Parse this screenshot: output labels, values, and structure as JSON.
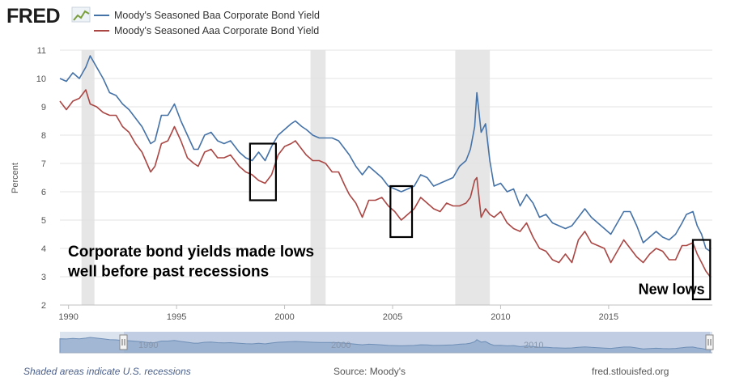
{
  "brand": {
    "logo_text": "FRED",
    "logo_icon": "line-chart-icon"
  },
  "footer": {
    "recession_note": "Shaded areas indicate U.S. recessions",
    "source": "Source: Moody's",
    "site": "fred.stlouisfed.org"
  },
  "navigator": {
    "labels": [
      "1990",
      "2000",
      "2010"
    ]
  },
  "chart_data": {
    "type": "line",
    "title": "",
    "xlabel": "",
    "ylabel": "Percent",
    "ylim": [
      2,
      11
    ],
    "xlim": [
      1989.6,
      2019.8
    ],
    "yticks": [
      2,
      3,
      4,
      5,
      6,
      7,
      8,
      9,
      10,
      11
    ],
    "xticks": [
      "1990",
      "1995",
      "2000",
      "2005",
      "2010",
      "2015"
    ],
    "xtick_values": [
      1990,
      1995,
      2000,
      2005,
      2010,
      2015
    ],
    "grid": true,
    "colors": {
      "baa": "#4572a7",
      "aaa": "#aa4643",
      "recession": "#e6e6e6",
      "grid": "#e3e3e3"
    },
    "recessions": [
      [
        1990.6,
        1991.2
      ],
      [
        2001.2,
        2001.9
      ],
      [
        2007.9,
        2009.5
      ]
    ],
    "series": [
      {
        "name": "Moody's Seasoned Baa Corporate Bond Yield",
        "x": [
          1989.6,
          1989.9,
          1990.2,
          1990.5,
          1990.8,
          1991.0,
          1991.3,
          1991.6,
          1991.9,
          1992.2,
          1992.5,
          1992.8,
          1993.1,
          1993.4,
          1993.8,
          1994.0,
          1994.3,
          1994.6,
          1994.9,
          1995.2,
          1995.5,
          1995.8,
          1996.0,
          1996.3,
          1996.6,
          1996.9,
          1997.2,
          1997.5,
          1997.9,
          1998.2,
          1998.5,
          1998.8,
          1999.1,
          1999.4,
          1999.7,
          2000.0,
          2000.3,
          2000.5,
          2000.8,
          2001.0,
          2001.3,
          2001.6,
          2001.9,
          2002.2,
          2002.5,
          2002.8,
          2003.0,
          2003.3,
          2003.6,
          2003.9,
          2004.2,
          2004.5,
          2004.8,
          2005.1,
          2005.4,
          2005.7,
          2006.0,
          2006.3,
          2006.6,
          2006.9,
          2007.2,
          2007.5,
          2007.8,
          2008.1,
          2008.4,
          2008.6,
          2008.8,
          2008.9,
          2009.1,
          2009.3,
          2009.5,
          2009.7,
          2010.0,
          2010.3,
          2010.6,
          2010.9,
          2011.2,
          2011.5,
          2011.8,
          2012.1,
          2012.4,
          2012.7,
          2013.0,
          2013.3,
          2013.6,
          2013.9,
          2014.2,
          2014.5,
          2014.8,
          2015.1,
          2015.4,
          2015.7,
          2016.0,
          2016.3,
          2016.6,
          2016.9,
          2017.2,
          2017.5,
          2017.8,
          2018.1,
          2018.4,
          2018.6,
          2018.9,
          2019.1,
          2019.3,
          2019.5,
          2019.7
        ],
        "values": [
          10.0,
          9.9,
          10.2,
          10.0,
          10.4,
          10.8,
          10.4,
          10.0,
          9.5,
          9.4,
          9.1,
          8.9,
          8.6,
          8.3,
          7.7,
          7.8,
          8.7,
          8.7,
          9.1,
          8.5,
          8.0,
          7.5,
          7.5,
          8.0,
          8.1,
          7.8,
          7.7,
          7.8,
          7.4,
          7.2,
          7.1,
          7.4,
          7.1,
          7.6,
          8.0,
          8.2,
          8.4,
          8.5,
          8.3,
          8.2,
          8.0,
          7.9,
          7.9,
          7.9,
          7.8,
          7.5,
          7.3,
          6.9,
          6.6,
          6.9,
          6.7,
          6.5,
          6.2,
          6.1,
          6.0,
          6.1,
          6.2,
          6.6,
          6.5,
          6.2,
          6.3,
          6.4,
          6.5,
          6.9,
          7.1,
          7.5,
          8.3,
          9.5,
          8.1,
          8.4,
          7.1,
          6.2,
          6.3,
          6.0,
          6.1,
          5.5,
          5.9,
          5.6,
          5.1,
          5.2,
          4.9,
          4.8,
          4.7,
          4.8,
          5.1,
          5.4,
          5.1,
          4.9,
          4.7,
          4.5,
          4.9,
          5.3,
          5.3,
          4.8,
          4.2,
          4.4,
          4.6,
          4.4,
          4.3,
          4.5,
          4.9,
          5.2,
          5.3,
          4.8,
          4.5,
          4.0,
          3.9
        ]
      },
      {
        "name": "Moody's Seasoned Aaa Corporate Bond Yield",
        "x": [
          1989.6,
          1989.9,
          1990.2,
          1990.5,
          1990.8,
          1991.0,
          1991.3,
          1991.6,
          1991.9,
          1992.2,
          1992.5,
          1992.8,
          1993.1,
          1993.4,
          1993.8,
          1994.0,
          1994.3,
          1994.6,
          1994.9,
          1995.2,
          1995.5,
          1995.8,
          1996.0,
          1996.3,
          1996.6,
          1996.9,
          1997.2,
          1997.5,
          1997.9,
          1998.2,
          1998.5,
          1998.8,
          1999.1,
          1999.4,
          1999.7,
          2000.0,
          2000.3,
          2000.5,
          2000.8,
          2001.0,
          2001.3,
          2001.6,
          2001.9,
          2002.2,
          2002.5,
          2002.8,
          2003.0,
          2003.3,
          2003.6,
          2003.9,
          2004.2,
          2004.5,
          2004.8,
          2005.1,
          2005.4,
          2005.7,
          2006.0,
          2006.3,
          2006.6,
          2006.9,
          2007.2,
          2007.5,
          2007.8,
          2008.1,
          2008.4,
          2008.6,
          2008.8,
          2008.9,
          2009.1,
          2009.3,
          2009.5,
          2009.7,
          2010.0,
          2010.3,
          2010.6,
          2010.9,
          2011.2,
          2011.5,
          2011.8,
          2012.1,
          2012.4,
          2012.7,
          2013.0,
          2013.3,
          2013.6,
          2013.9,
          2014.2,
          2014.5,
          2014.8,
          2015.1,
          2015.4,
          2015.7,
          2016.0,
          2016.3,
          2016.6,
          2016.9,
          2017.2,
          2017.5,
          2017.8,
          2018.1,
          2018.4,
          2018.6,
          2018.9,
          2019.1,
          2019.3,
          2019.5,
          2019.7
        ],
        "values": [
          9.2,
          8.9,
          9.2,
          9.3,
          9.6,
          9.1,
          9.0,
          8.8,
          8.7,
          8.7,
          8.3,
          8.1,
          7.7,
          7.4,
          6.7,
          6.9,
          7.7,
          7.8,
          8.3,
          7.8,
          7.2,
          7.0,
          6.9,
          7.4,
          7.5,
          7.2,
          7.2,
          7.3,
          6.9,
          6.7,
          6.6,
          6.4,
          6.3,
          6.6,
          7.3,
          7.6,
          7.7,
          7.8,
          7.5,
          7.3,
          7.1,
          7.1,
          7.0,
          6.7,
          6.7,
          6.2,
          5.9,
          5.6,
          5.1,
          5.7,
          5.7,
          5.8,
          5.5,
          5.3,
          5.0,
          5.2,
          5.4,
          5.8,
          5.6,
          5.4,
          5.3,
          5.6,
          5.5,
          5.5,
          5.6,
          5.8,
          6.4,
          6.5,
          5.1,
          5.4,
          5.2,
          5.1,
          5.3,
          4.9,
          4.7,
          4.6,
          4.9,
          4.4,
          4.0,
          3.9,
          3.6,
          3.5,
          3.8,
          3.5,
          4.3,
          4.6,
          4.2,
          4.1,
          4.0,
          3.5,
          3.9,
          4.3,
          4.0,
          3.7,
          3.5,
          3.8,
          4.0,
          3.9,
          3.6,
          3.6,
          4.1,
          4.1,
          4.2,
          3.8,
          3.5,
          3.2,
          3.0
        ]
      }
    ],
    "annotations": [
      {
        "text": "Corporate bond yields made lows",
        "x": 1989.9,
        "y": 3.72
      },
      {
        "text": "well before past recessions",
        "x": 1989.9,
        "y": 3.02
      },
      {
        "text": "New lows",
        "x": 2016.3,
        "y": 2.38
      }
    ],
    "highlight_boxes": [
      {
        "x": [
          1998.4,
          1999.6
        ],
        "y": [
          5.7,
          7.7
        ]
      },
      {
        "x": [
          2004.9,
          2005.9
        ],
        "y": [
          4.4,
          6.2
        ]
      },
      {
        "x": [
          2018.9,
          2019.7
        ],
        "y": [
          2.2,
          4.3
        ]
      }
    ]
  }
}
